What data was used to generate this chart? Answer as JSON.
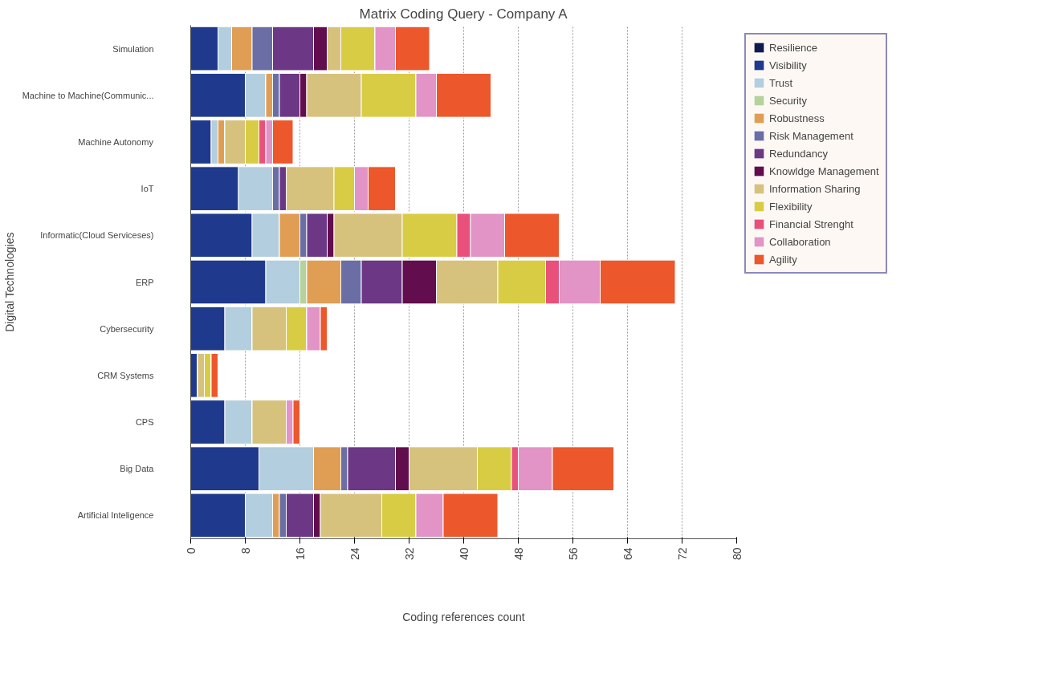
{
  "chart_data": {
    "type": "bar",
    "orientation": "horizontal",
    "stacked": true,
    "title": "Matrix Coding Query - Company A",
    "xlabel": "Coding references count",
    "ylabel": "Digital Technologies",
    "categories": [
      "Simulation",
      "Machine to Machine(Communic...",
      "Machine Autonomy",
      "IoT",
      "Informatic(Cloud Serviceses)",
      "ERP",
      "Cybersecurity",
      "CRM Systems",
      "CPS",
      "Big Data",
      "Artificial Inteligence"
    ],
    "xlim": [
      0,
      80
    ],
    "xticks": [
      0,
      8,
      16,
      24,
      32,
      40,
      48,
      56,
      64,
      72,
      80
    ],
    "grid": "x",
    "legend": "right",
    "series": [
      {
        "name": "Resilience",
        "color": "#111a4e",
        "values": [
          0,
          0,
          0,
          0,
          0,
          0,
          0,
          0,
          0,
          0,
          0
        ]
      },
      {
        "name": "Visibility",
        "color": "#1f3a8c",
        "values": [
          4,
          8,
          3,
          7,
          9,
          11,
          5,
          1,
          5,
          10,
          8
        ]
      },
      {
        "name": "Trust",
        "color": "#b3cede",
        "values": [
          2,
          3,
          1,
          5,
          4,
          5,
          4,
          0,
          4,
          8,
          4
        ]
      },
      {
        "name": "Security",
        "color": "#b5d19c",
        "values": [
          0,
          0,
          0,
          0,
          0,
          1,
          0,
          0,
          0,
          0,
          0
        ]
      },
      {
        "name": "Robustness",
        "color": "#e09e55",
        "values": [
          3,
          1,
          1,
          0,
          3,
          5,
          0,
          0,
          0,
          4,
          1
        ]
      },
      {
        "name": "Risk Management",
        "color": "#6a6ea5",
        "values": [
          3,
          1,
          0,
          1,
          1,
          3,
          0,
          0,
          0,
          1,
          1
        ]
      },
      {
        "name": "Redundancy",
        "color": "#6c3784",
        "values": [
          6,
          3,
          0,
          1,
          3,
          6,
          0,
          0,
          0,
          7,
          4
        ]
      },
      {
        "name": "Knowldge Management",
        "color": "#620d4e",
        "values": [
          2,
          1,
          0,
          0,
          1,
          5,
          0,
          0,
          0,
          2,
          1
        ]
      },
      {
        "name": "Information Sharing",
        "color": "#d6c27d",
        "values": [
          2,
          8,
          3,
          7,
          10,
          9,
          5,
          1,
          5,
          10,
          9
        ]
      },
      {
        "name": "Flexibility",
        "color": "#d9cc45",
        "values": [
          5,
          8,
          2,
          3,
          8,
          7,
          3,
          1,
          0,
          5,
          5
        ]
      },
      {
        "name": "Financial Strenght",
        "color": "#e9507c",
        "values": [
          0,
          0,
          1,
          0,
          2,
          2,
          0,
          0,
          0,
          1,
          0
        ]
      },
      {
        "name": "Collaboration",
        "color": "#e194c5",
        "values": [
          3,
          3,
          1,
          2,
          5,
          6,
          2,
          0,
          1,
          5,
          4
        ]
      },
      {
        "name": "Agility",
        "color": "#ec572c",
        "values": [
          5,
          8,
          3,
          4,
          8,
          11,
          1,
          1,
          1,
          9,
          8
        ]
      }
    ]
  }
}
